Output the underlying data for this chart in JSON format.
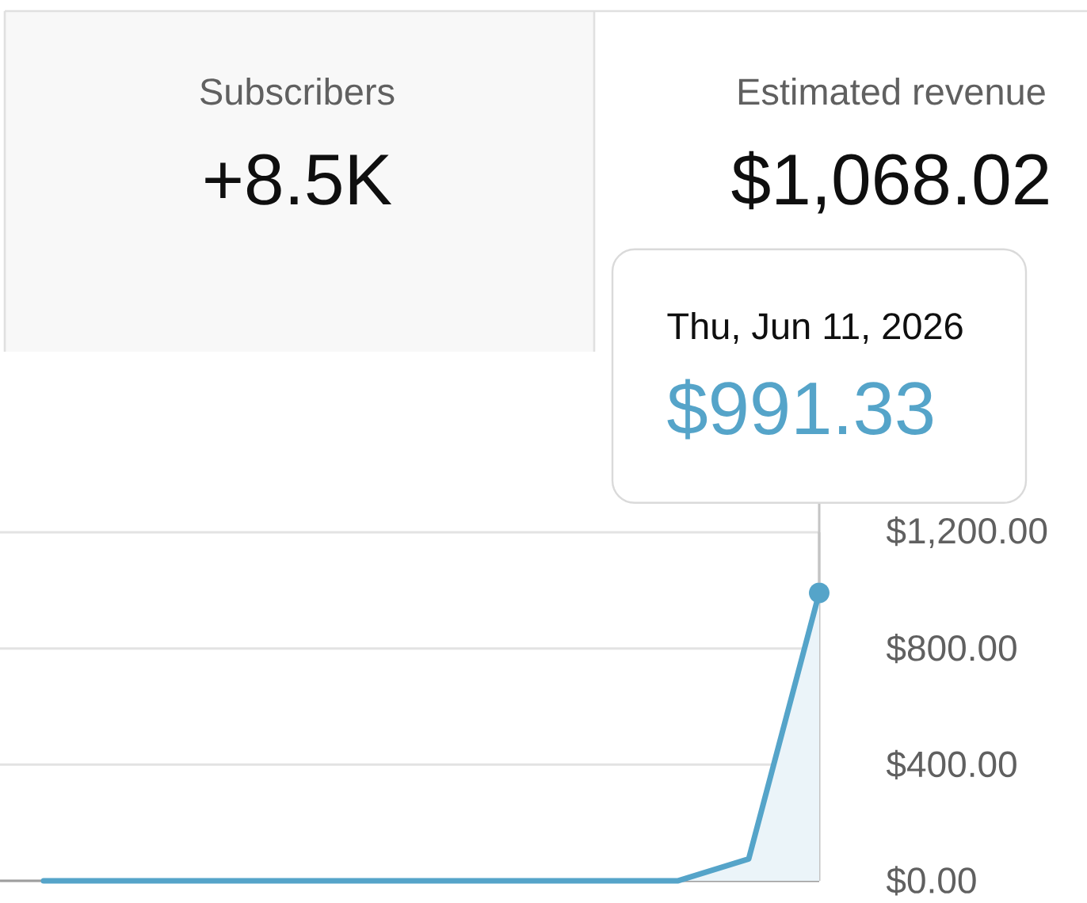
{
  "chart_data": [
    {
      "type": "other",
      "title": "Subscribers",
      "annotations": [
        "+8.5K"
      ]
    },
    {
      "type": "other",
      "title": "Estimated revenue",
      "annotations": [
        "$1,068.02"
      ]
    },
    {
      "type": "area",
      "categories": [
        null,
        null,
        null,
        null,
        null,
        null,
        null,
        null,
        null,
        null,
        null,
        null
      ],
      "values": [
        0,
        0,
        0,
        0,
        0,
        0,
        0,
        0,
        0,
        0,
        75,
        991.33
      ],
      "color": "#55a4c9",
      "ylim": [
        0,
        1200
      ],
      "yticks": [
        {
          "value": 0,
          "label": "$0.00"
        },
        {
          "value": 400,
          "label": "$400.00"
        },
        {
          "value": 800,
          "label": "$800.00"
        },
        {
          "value": 1200,
          "label": "$1,200.00"
        }
      ],
      "grid": "y",
      "tick_labels": "y",
      "annotations": [
        "Thu, Jun 11, 2026",
        "$991.33"
      ]
    }
  ]
}
